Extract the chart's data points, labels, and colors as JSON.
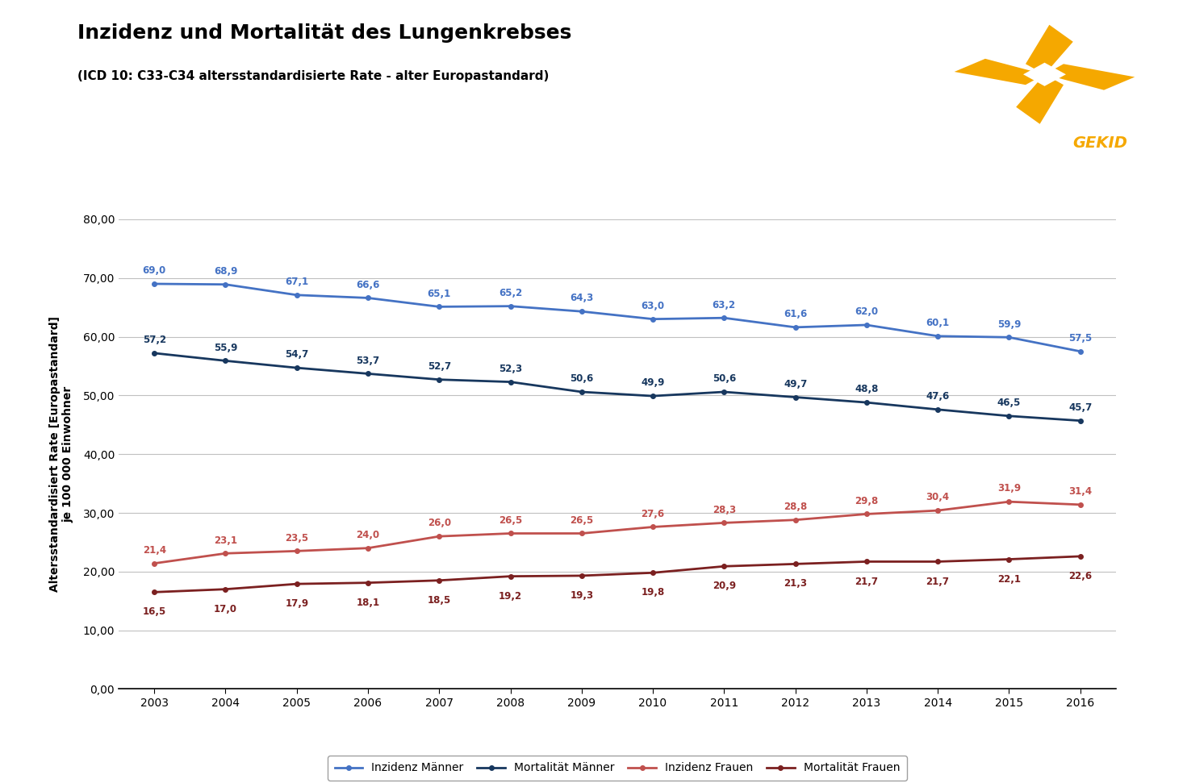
{
  "title": "Inzidenz und Mortalität des Lungenkrebses",
  "subtitle": "(ICD 10: C33-C34 altersstandardisierte Rate - alter Europastandard)",
  "ylabel": "Altersstandardisiert Rate [Europastandard]\nje 100 000 Einwohner",
  "years": [
    2003,
    2004,
    2005,
    2006,
    2007,
    2008,
    2009,
    2010,
    2011,
    2012,
    2013,
    2014,
    2015,
    2016
  ],
  "inzidenz_maenner": [
    69.0,
    68.9,
    67.1,
    66.6,
    65.1,
    65.2,
    64.3,
    63.0,
    63.2,
    61.6,
    62.0,
    60.1,
    59.9,
    57.5
  ],
  "mortalitaet_maenner": [
    57.2,
    55.9,
    54.7,
    53.7,
    52.7,
    52.3,
    50.6,
    49.9,
    50.6,
    49.7,
    48.8,
    47.6,
    46.5,
    45.7
  ],
  "inzidenz_frauen": [
    21.4,
    23.1,
    23.5,
    24.0,
    26.0,
    26.5,
    26.5,
    27.6,
    28.3,
    28.8,
    29.8,
    30.4,
    31.9,
    31.4
  ],
  "mortalitaet_frauen": [
    16.5,
    17.0,
    17.9,
    18.1,
    18.5,
    19.2,
    19.3,
    19.8,
    20.9,
    21.3,
    21.7,
    21.7,
    22.1,
    22.6
  ],
  "color_inzidenz_maenner": "#4472C4",
  "color_mortalitaet_maenner": "#17375E",
  "color_inzidenz_frauen": "#C0504D",
  "color_mortalitaet_frauen": "#7B2020",
  "ylim": [
    0,
    80
  ],
  "yticks": [
    0,
    10.0,
    20.0,
    30.0,
    40.0,
    50.0,
    60.0,
    70.0,
    80.0
  ],
  "ytick_labels": [
    "0,00",
    "10,00",
    "20,00",
    "30,00",
    "40,00",
    "50,00",
    "60,00",
    "70,00",
    "80,00"
  ],
  "legend_labels": [
    "Inzidenz Männer",
    "Mortalität Männer",
    "Inzidenz Frauen",
    "Mortalität Frauen"
  ],
  "background_color": "#FFFFFF",
  "plot_bg_color": "#FFFFFF",
  "grid_color": "#C0C0C0",
  "line_width": 2.0,
  "marker_size": 4,
  "orange": "#F5A800"
}
